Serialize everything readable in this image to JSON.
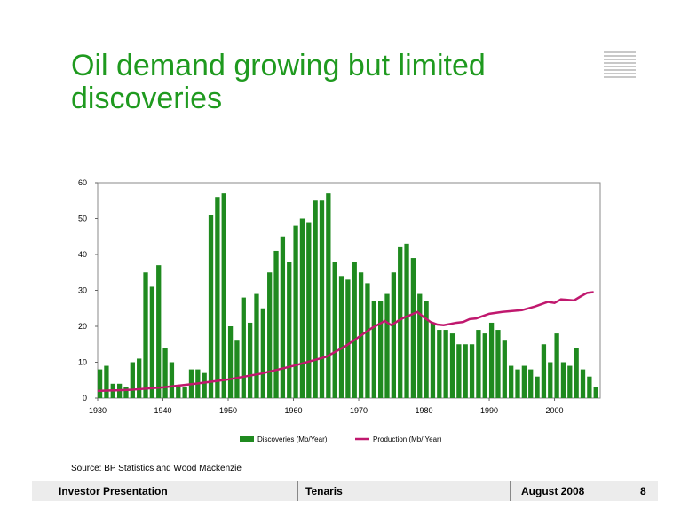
{
  "slide": {
    "title": "Oil demand growing but limited discoveries",
    "source": "Source: BP Statistics and Wood Mackenzie",
    "colors": {
      "title": "#1f9a1f",
      "bars": "#1f8a1f",
      "line": "#c0186e"
    }
  },
  "footer": {
    "left": "Investor Presentation",
    "center": "Tenaris",
    "date": "August 2008",
    "page": "8"
  },
  "chart_data": {
    "type": "bar",
    "x_start": 1930,
    "x_end": 2006,
    "xlim": [
      1930,
      2007
    ],
    "ylim": [
      0,
      60
    ],
    "x_ticks": [
      "1930",
      "1940",
      "1950",
      "1960",
      "1970",
      "1980",
      "1990",
      "2000"
    ],
    "y_ticks": [
      "0",
      "10",
      "20",
      "30",
      "40",
      "50",
      "60"
    ],
    "grid": false,
    "legend_position": "bottom",
    "series": [
      {
        "name": "Discoveries (Mb/Year)",
        "kind": "bar",
        "values": [
          8,
          9,
          4,
          4,
          3,
          10,
          11,
          35,
          31,
          37,
          14,
          10,
          3,
          3,
          8,
          8,
          7,
          51,
          56,
          57,
          20,
          16,
          28,
          21,
          29,
          25,
          35,
          41,
          45,
          38,
          48,
          50,
          49,
          55,
          55,
          57,
          38,
          34,
          33,
          38,
          35,
          32,
          27,
          27,
          29,
          35,
          42,
          43,
          39,
          29,
          27,
          21,
          19,
          19,
          18,
          15,
          15,
          15,
          19,
          18,
          21,
          19,
          16,
          9,
          8,
          9,
          8,
          6,
          15,
          10,
          18,
          10,
          9,
          14,
          8,
          6,
          3
        ]
      },
      {
        "name": "Production (Mb/ Year)",
        "kind": "line",
        "points": [
          [
            1930,
            2
          ],
          [
            1935,
            2.3
          ],
          [
            1940,
            3
          ],
          [
            1945,
            4
          ],
          [
            1950,
            5.2
          ],
          [
            1955,
            6.8
          ],
          [
            1960,
            9
          ],
          [
            1965,
            11.5
          ],
          [
            1968,
            14.5
          ],
          [
            1970,
            17
          ],
          [
            1972,
            19.5
          ],
          [
            1974,
            21.5
          ],
          [
            1975,
            20.3
          ],
          [
            1976,
            21.5
          ],
          [
            1977,
            22.5
          ],
          [
            1978,
            23.2
          ],
          [
            1979,
            24
          ],
          [
            1980,
            22.5
          ],
          [
            1981,
            21.2
          ],
          [
            1982,
            20.5
          ],
          [
            1983,
            20.3
          ],
          [
            1985,
            21
          ],
          [
            1986,
            21.2
          ],
          [
            1987,
            22
          ],
          [
            1988,
            22.2
          ],
          [
            1990,
            23.5
          ],
          [
            1992,
            24
          ],
          [
            1995,
            24.5
          ],
          [
            1997,
            25.5
          ],
          [
            1999,
            26.8
          ],
          [
            2000,
            26.5
          ],
          [
            2001,
            27.5
          ],
          [
            2003,
            27.2
          ],
          [
            2004,
            28.3
          ],
          [
            2005,
            29.3
          ],
          [
            2006,
            29.5
          ]
        ]
      }
    ]
  }
}
